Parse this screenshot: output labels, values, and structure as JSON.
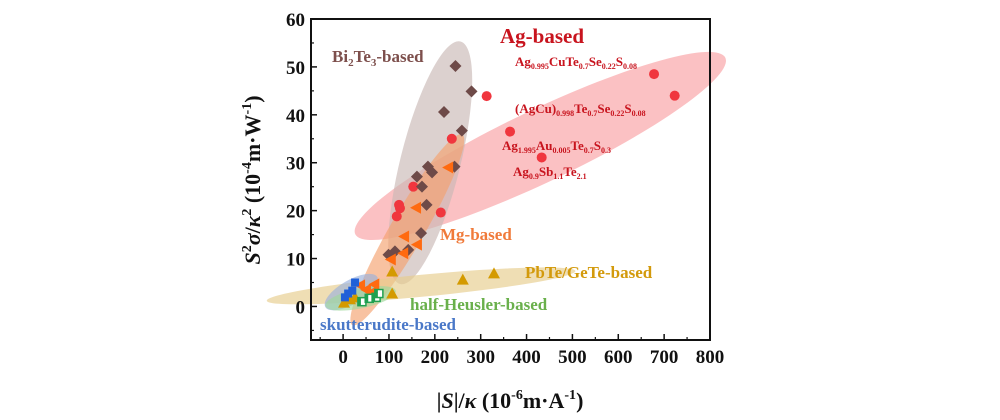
{
  "chart_data": {
    "type": "scatter",
    "title": "",
    "xlabel": "|S|/κ (10⁻⁶m·A⁻¹)",
    "ylabel": "S²σ/κ² (10⁻⁴m·W⁻¹)",
    "xlim": [
      -70,
      800
    ],
    "ylim": [
      -7,
      60
    ],
    "xticks": [
      0,
      100,
      200,
      300,
      400,
      500,
      600,
      700,
      800
    ],
    "yticks": [
      0,
      10,
      20,
      30,
      40,
      50,
      60
    ],
    "grid": false,
    "legend": "none (inline annotations)",
    "series": [
      {
        "name": "Ag-based",
        "marker": "circle",
        "color": "#f0363e",
        "region_color": "#f9a0a3",
        "label_color": "#c8141e",
        "points": [
          [
            678,
            48.5
          ],
          [
            723,
            44
          ],
          [
            364,
            36.5
          ],
          [
            433,
            31.1
          ],
          [
            313,
            43.9
          ],
          [
            237,
            35
          ],
          [
            153,
            25
          ],
          [
            122,
            21.2
          ],
          [
            124,
            20.5
          ],
          [
            117,
            18.8
          ],
          [
            213,
            19.6
          ]
        ]
      },
      {
        "name": "Bi2Te3-based",
        "marker": "diamond",
        "color": "#6e4a48",
        "region_color": "#c9b8b6",
        "label_color": "#7d4f4c",
        "points": [
          [
            245,
            50.2
          ],
          [
            280,
            44.9
          ],
          [
            220,
            40.6
          ],
          [
            259,
            36.7
          ],
          [
            185,
            29.2
          ],
          [
            194,
            28
          ],
          [
            243,
            29.2
          ],
          [
            161,
            27.1
          ],
          [
            172,
            25
          ],
          [
            182,
            21.2
          ],
          [
            170,
            15.3
          ],
          [
            142,
            11.8
          ],
          [
            113,
            11.5
          ],
          [
            99,
            10.8
          ]
        ]
      },
      {
        "name": "Mg-based",
        "marker": "triangle-left",
        "color": "#ff6a10",
        "region_color": "#f5a26e",
        "label_color": "#f07a3a",
        "points": [
          [
            229,
            29
          ],
          [
            159,
            20.6
          ],
          [
            133,
            14.6
          ],
          [
            161,
            12.9
          ],
          [
            131,
            11.1
          ],
          [
            104,
            9.8
          ],
          [
            37,
            4.4
          ],
          [
            50,
            3.5
          ],
          [
            68,
            4.6
          ],
          [
            61,
            2.9
          ]
        ]
      },
      {
        "name": "PbTe/GeTe-based",
        "marker": "triangle-up",
        "color": "#d49a00",
        "region_color": "#e6cd8c",
        "label_color": "#d39a0c",
        "points": [
          [
            107,
            7.3
          ],
          [
            261,
            5.6
          ],
          [
            329,
            6.9
          ],
          [
            107,
            2.7
          ],
          [
            2,
            0.8
          ],
          [
            15,
            1.5
          ],
          [
            26,
            1.9
          ]
        ]
      },
      {
        "name": "half-Heusler-based",
        "marker": "half-filled-square",
        "color": "#1fa050",
        "region_color": "#9fd99c",
        "label_color": "#6ab04c",
        "points": [
          [
            41,
            1
          ],
          [
            57,
            1.7
          ],
          [
            72,
            1.9
          ],
          [
            78,
            2.7
          ]
        ]
      },
      {
        "name": "skutterudite-based",
        "marker": "square",
        "color": "#2060d8",
        "region_color": "#9ab0dc",
        "label_color": "#4a78c8",
        "points": [
          [
            26,
            5
          ],
          [
            20,
            3.3
          ],
          [
            4,
            1.9
          ],
          [
            11,
            2.7
          ]
        ]
      }
    ],
    "annotations": [
      {
        "series": "Ag-based",
        "parts": [
          [
            "Ag",
            ""
          ],
          [
            "0.995",
            "sub"
          ],
          [
            "CuTe",
            ""
          ],
          [
            "0.7",
            "sub"
          ],
          [
            "Se",
            ""
          ],
          [
            "0.22",
            "sub"
          ],
          [
            "S",
            ""
          ],
          [
            "0.08",
            "sub"
          ]
        ],
        "near": [
          678,
          48.5
        ]
      },
      {
        "series": "Ag-based",
        "parts": [
          [
            "(AgCu)",
            ""
          ],
          [
            "0.998",
            "sub"
          ],
          [
            "Te",
            ""
          ],
          [
            "0.7",
            "sub"
          ],
          [
            "Se",
            ""
          ],
          [
            "0.22",
            "sub"
          ],
          [
            "S",
            ""
          ],
          [
            "0.08",
            "sub"
          ]
        ],
        "near": [
          723,
          44
        ]
      },
      {
        "series": "Ag-based",
        "parts": [
          [
            "Ag",
            ""
          ],
          [
            "1.995",
            "sub"
          ],
          [
            "Au",
            ""
          ],
          [
            "0.005",
            "sub"
          ],
          [
            "Te",
            ""
          ],
          [
            "0.7",
            "sub"
          ],
          [
            "S",
            ""
          ],
          [
            "0.3",
            "sub"
          ]
        ],
        "near": [
          364,
          36.5
        ]
      },
      {
        "series": "Ag-based",
        "parts": [
          [
            "Ag",
            ""
          ],
          [
            "0.9",
            "sub"
          ],
          [
            "Sb",
            ""
          ],
          [
            "1.1",
            "sub"
          ],
          [
            "Te",
            ""
          ],
          [
            "2.1",
            "sub"
          ]
        ],
        "near": [
          433,
          31.1
        ]
      }
    ]
  }
}
